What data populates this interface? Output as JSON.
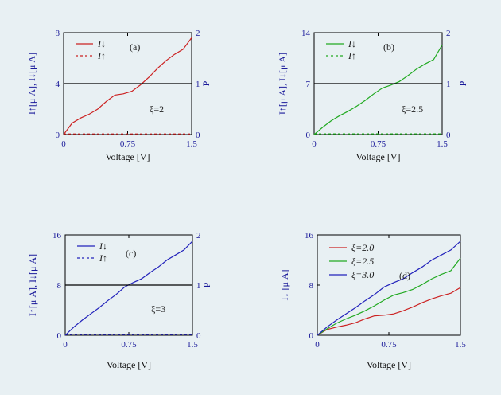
{
  "chart_data": [
    {
      "type": "line",
      "panel": "(a)",
      "annotation": "ξ=2",
      "xlabel": "Voltage [V]",
      "ylabel": "I↑[μ A],  I↓[μ A]",
      "y2label": "P",
      "xlim": [
        0,
        1.5
      ],
      "ylim": [
        0,
        8
      ],
      "y2lim": [
        0,
        2
      ],
      "xticks": [
        "0",
        "0.75",
        "1.5"
      ],
      "yticks": [
        "0",
        "4",
        "8"
      ],
      "y2ticks": [
        "0",
        "1",
        "2"
      ],
      "legend": [
        "I↓",
        "I↑"
      ],
      "series": [
        {
          "name": "I↓",
          "color": "#cc2222",
          "style": "solid",
          "x": [
            0,
            0.1,
            0.2,
            0.3,
            0.4,
            0.5,
            0.6,
            0.7,
            0.8,
            0.9,
            1.0,
            1.1,
            1.2,
            1.3,
            1.4,
            1.5
          ],
          "y": [
            0,
            0.9,
            1.3,
            1.6,
            2.0,
            2.6,
            3.1,
            3.2,
            3.4,
            3.9,
            4.5,
            5.2,
            5.8,
            6.3,
            6.7,
            7.6
          ]
        },
        {
          "name": "I↑",
          "color": "#cc2222",
          "style": "dashed",
          "x": [
            0,
            1.5
          ],
          "y": [
            0.05,
            0.05
          ]
        },
        {
          "name": "P",
          "color": "#000000",
          "style": "solid",
          "axis": "y2",
          "x": [
            0,
            1.5
          ],
          "y": [
            1,
            1
          ]
        }
      ]
    },
    {
      "type": "line",
      "panel": "(b)",
      "annotation": "ξ=2.5",
      "xlabel": "Voltage [V]",
      "ylabel": "I↑[μ A],  I↓[μ A]",
      "y2label": "P",
      "xlim": [
        0,
        1.5
      ],
      "ylim": [
        0,
        14
      ],
      "y2lim": [
        0,
        2
      ],
      "xticks": [
        "0",
        "0.75",
        "1.5"
      ],
      "yticks": [
        "0",
        "7",
        "14"
      ],
      "y2ticks": [
        "0",
        "1",
        "2"
      ],
      "legend": [
        "I↓",
        "I↑"
      ],
      "series": [
        {
          "name": "I↓",
          "color": "#22aa22",
          "style": "solid",
          "x": [
            0,
            0.1,
            0.2,
            0.3,
            0.4,
            0.5,
            0.6,
            0.7,
            0.8,
            0.9,
            1.0,
            1.1,
            1.2,
            1.3,
            1.4,
            1.5
          ],
          "y": [
            0,
            1.0,
            1.9,
            2.6,
            3.2,
            3.9,
            4.7,
            5.6,
            6.4,
            6.8,
            7.3,
            8.1,
            9.0,
            9.7,
            10.3,
            12.3
          ]
        },
        {
          "name": "I↑",
          "color": "#22aa22",
          "style": "dashed",
          "x": [
            0,
            1.5
          ],
          "y": [
            0.1,
            0.1
          ]
        },
        {
          "name": "P",
          "color": "#000000",
          "style": "solid",
          "axis": "y2",
          "x": [
            0,
            1.5
          ],
          "y": [
            1,
            1
          ]
        }
      ]
    },
    {
      "type": "line",
      "panel": "(c)",
      "annotation": "ξ=3",
      "xlabel": "Voltage [V]",
      "ylabel": "I↑[μ A],  I↓[μ A]",
      "y2label": "P",
      "xlim": [
        0,
        1.5
      ],
      "ylim": [
        0,
        16
      ],
      "y2lim": [
        0,
        2
      ],
      "xticks": [
        "0",
        "0.75",
        "1.5"
      ],
      "yticks": [
        "0",
        "8",
        "16"
      ],
      "y2ticks": [
        "0",
        "1",
        "2"
      ],
      "legend": [
        "I↓",
        "I↑"
      ],
      "series": [
        {
          "name": "I↓",
          "color": "#2222bb",
          "style": "solid",
          "x": [
            0,
            0.1,
            0.2,
            0.3,
            0.4,
            0.5,
            0.6,
            0.7,
            0.8,
            0.9,
            1.0,
            1.1,
            1.2,
            1.3,
            1.4,
            1.5
          ],
          "y": [
            0,
            1.3,
            2.4,
            3.4,
            4.4,
            5.5,
            6.5,
            7.7,
            8.4,
            9.0,
            10.0,
            10.9,
            12.0,
            12.8,
            13.6,
            15.0
          ]
        },
        {
          "name": "I↑",
          "color": "#2222bb",
          "style": "dashed",
          "x": [
            0,
            1.5
          ],
          "y": [
            0.1,
            0.1
          ]
        },
        {
          "name": "P",
          "color": "#000000",
          "style": "solid",
          "axis": "y2",
          "x": [
            0,
            1.5
          ],
          "y": [
            1,
            1
          ]
        }
      ]
    },
    {
      "type": "line",
      "panel": "(d)",
      "xlabel": "Voltage [V]",
      "ylabel": "I↓ [μ A]",
      "xlim": [
        0,
        1.5
      ],
      "ylim": [
        0,
        16
      ],
      "xticks": [
        "0",
        "0.75",
        "1.5"
      ],
      "yticks": [
        "0",
        "8",
        "16"
      ],
      "legend": [
        "ξ=2.0",
        "ξ=2.5",
        "ξ=3.0"
      ],
      "series": [
        {
          "name": "ξ=2.0",
          "color": "#cc2222",
          "style": "solid",
          "x": [
            0,
            0.1,
            0.2,
            0.3,
            0.4,
            0.5,
            0.6,
            0.7,
            0.8,
            0.9,
            1.0,
            1.1,
            1.2,
            1.3,
            1.4,
            1.5
          ],
          "y": [
            0,
            0.9,
            1.3,
            1.6,
            2.0,
            2.6,
            3.1,
            3.2,
            3.4,
            3.9,
            4.5,
            5.2,
            5.8,
            6.3,
            6.7,
            7.6
          ]
        },
        {
          "name": "ξ=2.5",
          "color": "#22aa22",
          "style": "solid",
          "x": [
            0,
            0.1,
            0.2,
            0.3,
            0.4,
            0.5,
            0.6,
            0.7,
            0.8,
            0.9,
            1.0,
            1.1,
            1.2,
            1.3,
            1.4,
            1.5
          ],
          "y": [
            0,
            1.0,
            1.9,
            2.6,
            3.2,
            3.9,
            4.7,
            5.6,
            6.4,
            6.8,
            7.3,
            8.1,
            9.0,
            9.7,
            10.3,
            12.3
          ]
        },
        {
          "name": "ξ=3.0",
          "color": "#2222bb",
          "style": "solid",
          "x": [
            0,
            0.1,
            0.2,
            0.3,
            0.4,
            0.5,
            0.6,
            0.7,
            0.8,
            0.9,
            1.0,
            1.1,
            1.2,
            1.3,
            1.4,
            1.5
          ],
          "y": [
            0,
            1.3,
            2.4,
            3.4,
            4.4,
            5.5,
            6.5,
            7.7,
            8.4,
            9.0,
            10.0,
            10.9,
            12.0,
            12.8,
            13.6,
            15.0
          ]
        }
      ]
    }
  ]
}
